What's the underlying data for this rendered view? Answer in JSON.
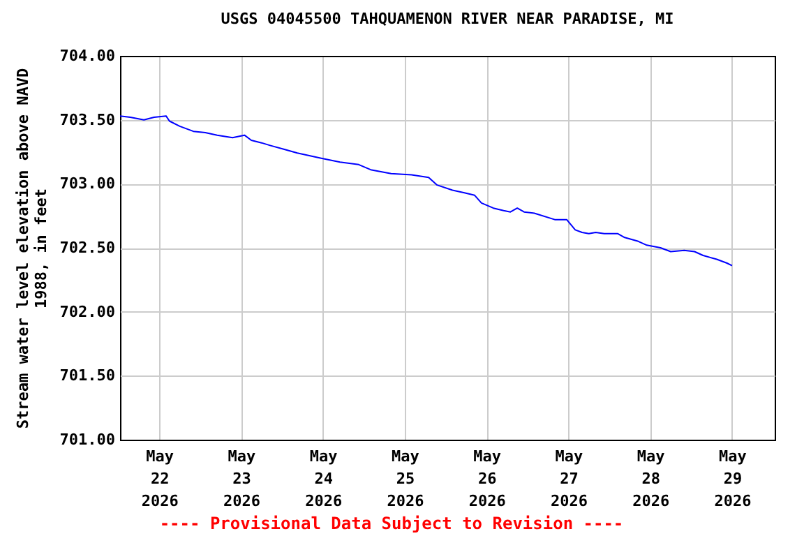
{
  "chart_data": {
    "type": "line",
    "title": "USGS 04045500 TAHQUAMENON RIVER NEAR PARADISE, MI",
    "ylabel": "Stream water level elevation above NAVD 1988, in feet",
    "annotations": [
      "---- Provisional Data Subject to Revision ----"
    ],
    "x": [
      "2026-05-21T12:30",
      "2026-05-21T15:30",
      "2026-05-21T19:30",
      "2026-05-21T22:30",
      "2026-05-22T02:00",
      "2026-05-22T03:00",
      "2026-05-22T06:00",
      "2026-05-22T10:00",
      "2026-05-22T13:30",
      "2026-05-22T17:00",
      "2026-05-22T21:30",
      "2026-05-23T01:00",
      "2026-05-23T03:00",
      "2026-05-23T06:00",
      "2026-05-23T08:30",
      "2026-05-23T12:30",
      "2026-05-23T16:30",
      "2026-05-23T23:30",
      "2026-05-24T05:00",
      "2026-05-24T10:30",
      "2026-05-24T14:00",
      "2026-05-24T20:00",
      "2026-05-25T02:00",
      "2026-05-25T07:00",
      "2026-05-25T09:30",
      "2026-05-25T14:00",
      "2026-05-25T17:30",
      "2026-05-25T20:30",
      "2026-05-25T22:30",
      "2026-05-26T02:00",
      "2026-05-26T05:00",
      "2026-05-26T07:00",
      "2026-05-26T09:00",
      "2026-05-26T11:00",
      "2026-05-26T14:00",
      "2026-05-26T20:00",
      "2026-05-26T23:30",
      "2026-05-27T02:00",
      "2026-05-27T04:00",
      "2026-05-27T06:00",
      "2026-05-27T08:00",
      "2026-05-27T10:30",
      "2026-05-27T14:30",
      "2026-05-27T16:30",
      "2026-05-27T20:30",
      "2026-05-27T23:00",
      "2026-05-28T03:00",
      "2026-05-28T06:00",
      "2026-05-28T10:00",
      "2026-05-28T13:00",
      "2026-05-28T15:30",
      "2026-05-28T19:30",
      "2026-05-28T22:30",
      "2026-05-29T00:00"
    ],
    "series": [
      {
        "color": "#0000ff",
        "values": [
          703.53,
          703.52,
          703.5,
          703.52,
          703.53,
          703.49,
          703.45,
          703.41,
          703.4,
          703.38,
          703.36,
          703.38,
          703.34,
          703.32,
          703.3,
          703.27,
          703.24,
          703.2,
          703.17,
          703.15,
          703.11,
          703.08,
          703.07,
          703.05,
          702.99,
          702.95,
          702.93,
          702.91,
          702.85,
          702.81,
          702.79,
          702.78,
          702.81,
          702.78,
          702.77,
          702.72,
          702.72,
          702.64,
          702.62,
          702.61,
          702.62,
          702.61,
          702.61,
          702.58,
          702.55,
          702.52,
          702.5,
          702.47,
          702.48,
          702.47,
          702.44,
          702.41,
          702.38,
          702.36
        ]
      }
    ],
    "xlim": [
      "2026-05-21T12:30",
      "2026-05-29T12:30"
    ],
    "xticks": [
      {
        "value": "2026-05-22",
        "label": "May\n22\n2026"
      },
      {
        "value": "2026-05-23",
        "label": "May\n23\n2026"
      },
      {
        "value": "2026-05-24",
        "label": "May\n24\n2026"
      },
      {
        "value": "2026-05-25",
        "label": "May\n25\n2026"
      },
      {
        "value": "2026-05-26",
        "label": "May\n26\n2026"
      },
      {
        "value": "2026-05-27",
        "label": "May\n27\n2026"
      },
      {
        "value": "2026-05-28",
        "label": "May\n28\n2026"
      },
      {
        "value": "2026-05-29",
        "label": "May\n29\n2026"
      }
    ],
    "ylim": [
      701,
      704
    ],
    "yticks": [
      {
        "value": 701,
        "label": "701.00"
      },
      {
        "value": 701.5,
        "label": "701.50"
      },
      {
        "value": 702,
        "label": "702.00"
      },
      {
        "value": 702.5,
        "label": "702.50"
      },
      {
        "value": 703,
        "label": "703.00"
      },
      {
        "value": 703.5,
        "label": "703.50"
      },
      {
        "value": 704,
        "label": "704.00"
      }
    ],
    "grid": true,
    "line_style": "solid",
    "marker": "none"
  }
}
